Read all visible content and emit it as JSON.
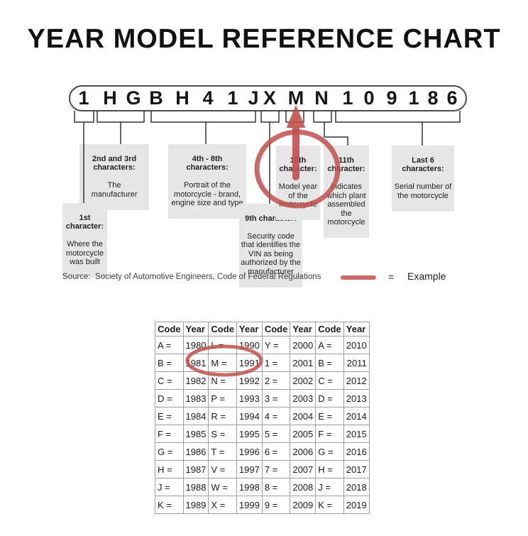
{
  "title": "YEAR MODEL REFERENCE CHART",
  "vin": {
    "characters": [
      "1",
      "H",
      "G",
      "B",
      "H",
      "4",
      "1",
      "J",
      "X",
      "M",
      "N",
      "1",
      "0",
      "9",
      "1",
      "8",
      "6"
    ]
  },
  "callouts": [
    {
      "heading": "1st\ncharacter:",
      "body": "Where the\nmotorcycle\nwas built"
    },
    {
      "heading": "2nd and 3rd\ncharacters:",
      "body": "The\nmanufacturer"
    },
    {
      "heading": "4th - 8th\ncharacters:",
      "body": "Portrait of the\nmotorcycle - brand,\nengine size and type"
    },
    {
      "heading": "9th character:",
      "body": "Security code\nthat identifies the\nVIN as being\nauthorized by the\nmanufacturer"
    },
    {
      "heading": "10th\ncharacter:",
      "body": "Model year\nof the\nmotorcycle"
    },
    {
      "heading": "11th\ncharacter:",
      "body": "Indicates\nwhich plant\nassembled\nthe\nmotorcycle"
    },
    {
      "heading": "Last 6\ncharacters:",
      "body": "Serial number of\nthe motorcycle"
    }
  ],
  "legend": {
    "source": "Source:  Society of Automotive Engineers, Code of Federal Regulations",
    "equals_sign": "=",
    "example_label": "Example"
  },
  "table": {
    "headers": [
      "Code",
      "Year",
      "Code",
      "Year",
      "Code",
      "Year",
      "Code",
      "Year"
    ],
    "rows": [
      [
        "A =",
        "1980",
        "L =",
        "1990",
        "Y =",
        "2000",
        "A =",
        "2010"
      ],
      [
        "B =",
        "1981",
        "M =",
        "1991",
        "1 =",
        "2001",
        "B =",
        "2011"
      ],
      [
        "C =",
        "1982",
        "N =",
        "1992",
        "2 =",
        "2002",
        "C =",
        "2012"
      ],
      [
        "D =",
        "1983",
        "P =",
        "1993",
        "3 =",
        "2003",
        "D =",
        "2013"
      ],
      [
        "E =",
        "1984",
        "R =",
        "1994",
        "4 =",
        "2004",
        "E =",
        "2014"
      ],
      [
        "F =",
        "1985",
        "S =",
        "1995",
        "5 =",
        "2005",
        "F =",
        "2015"
      ],
      [
        "G =",
        "1986",
        "T =",
        "1996",
        "6 =",
        "2006",
        "G =",
        "2016"
      ],
      [
        "H =",
        "1987",
        "V =",
        "1997",
        "7 =",
        "2007",
        "H =",
        "2017"
      ],
      [
        "J =",
        "1988",
        "W =",
        "1998",
        "8 =",
        "2008",
        "J =",
        "2018"
      ],
      [
        "K =",
        "1989",
        "X =",
        "1999",
        "9 =",
        "2009",
        "K =",
        "2019"
      ]
    ]
  },
  "colors": {
    "accent_red": "#c0504d",
    "callout_bg": "#e6e6e6",
    "table_border": "#9e9e9e"
  }
}
